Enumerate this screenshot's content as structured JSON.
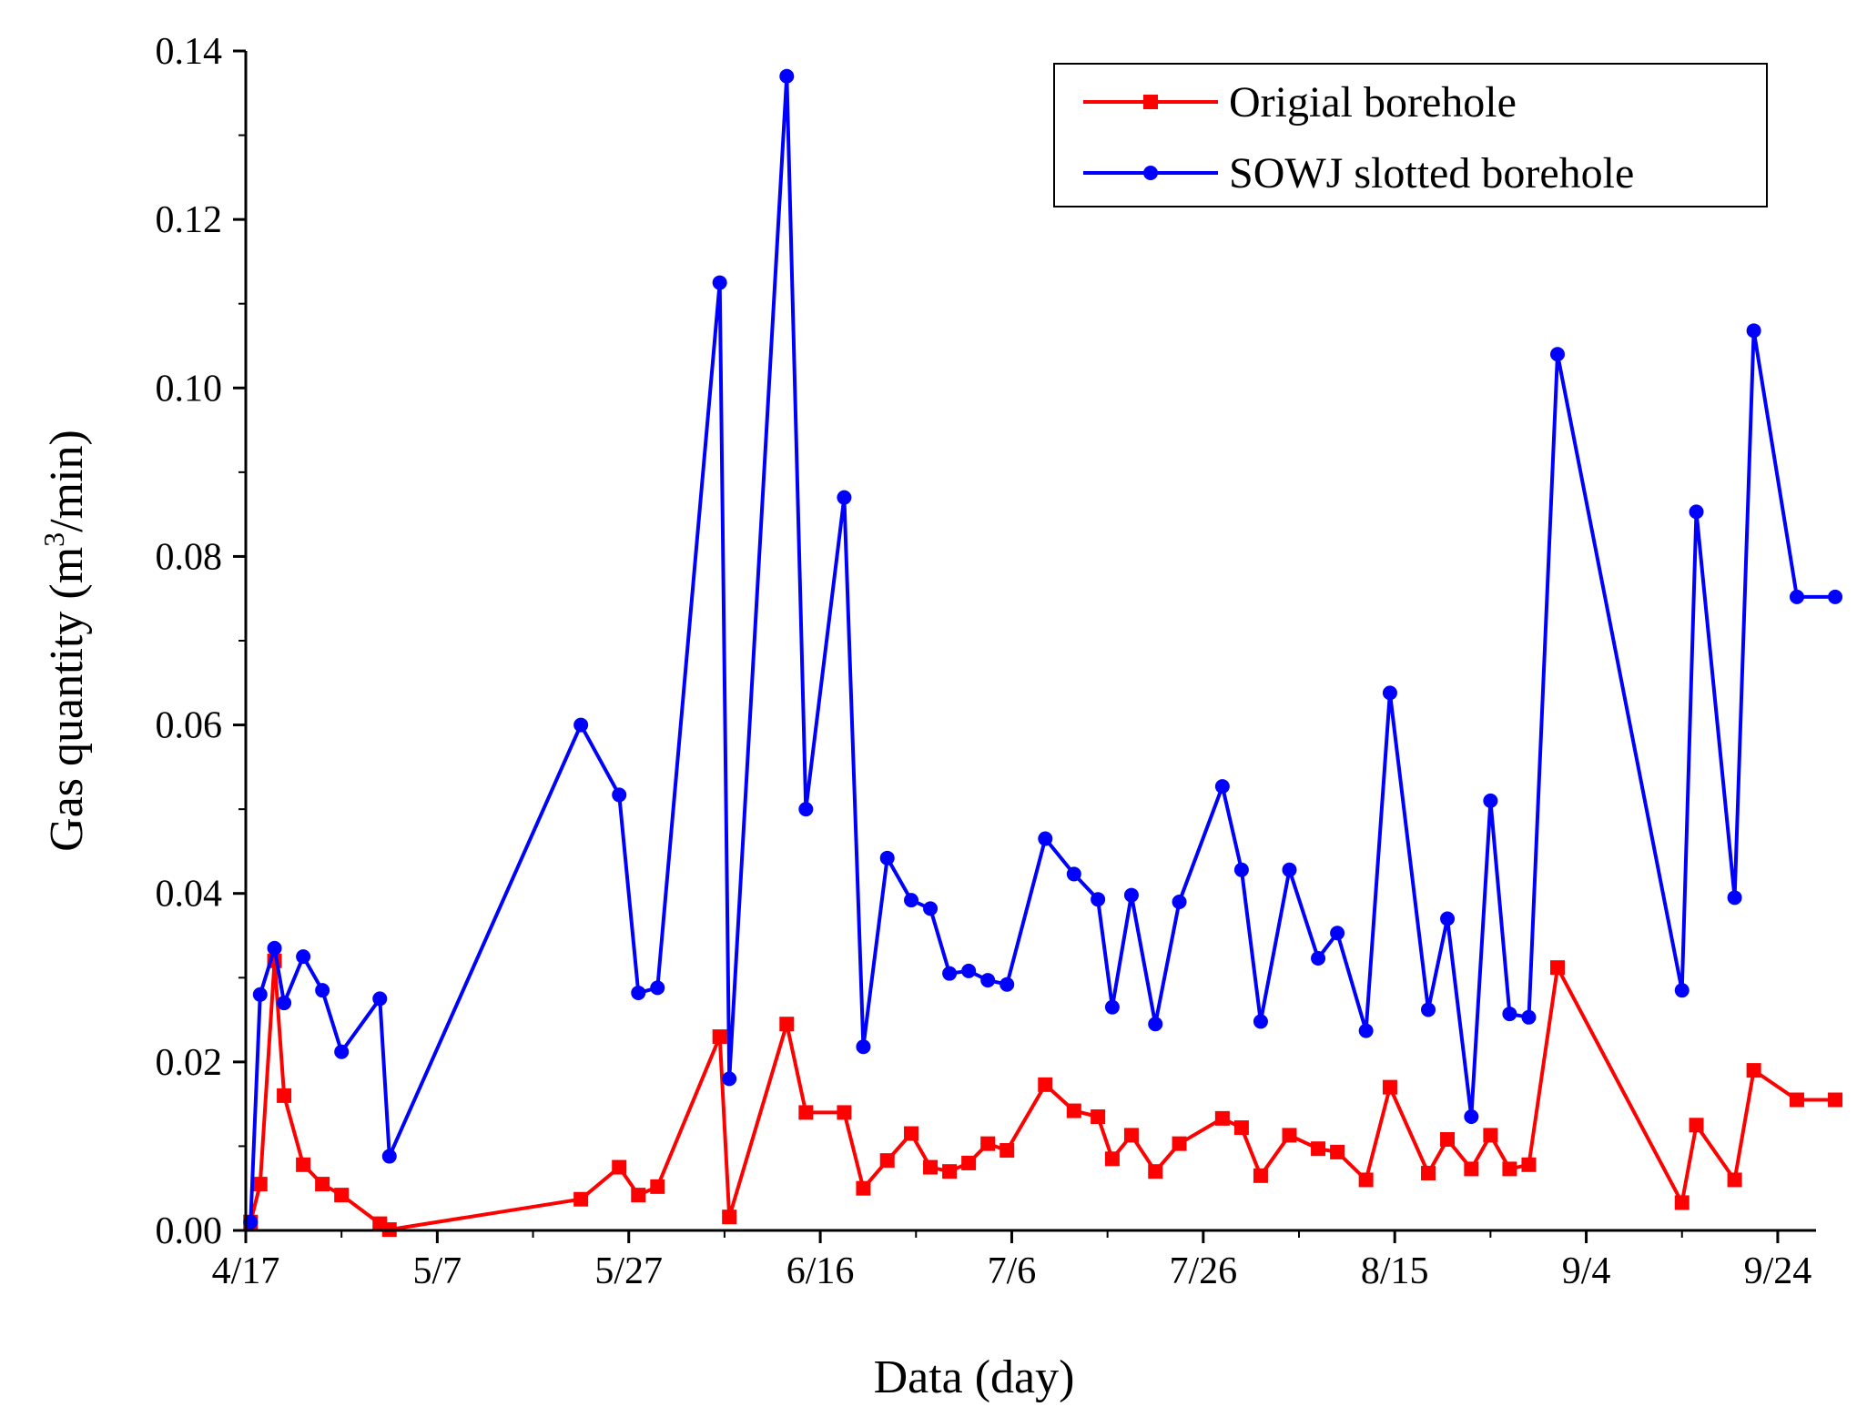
{
  "chart_data": {
    "type": "line",
    "title": "",
    "xlabel": "Data (day)",
    "ylabel_main": "Gas quantity (m",
    "ylabel_sup": "3",
    "ylabel_tail": "/min)",
    "ylabel": "Gas quantity (m3/min)",
    "x_unit": "days since 4/17",
    "xlim": [
      0,
      164
    ],
    "ylim": [
      0,
      0.14
    ],
    "x_ticks": [
      {
        "value": 0,
        "label": "4/17"
      },
      {
        "value": 20,
        "label": "5/7"
      },
      {
        "value": 40,
        "label": "5/27"
      },
      {
        "value": 60,
        "label": "6/16"
      },
      {
        "value": 80,
        "label": "7/6"
      },
      {
        "value": 100,
        "label": "7/26"
      },
      {
        "value": 120,
        "label": "8/15"
      },
      {
        "value": 140,
        "label": "9/4"
      },
      {
        "value": 160,
        "label": "9/24"
      }
    ],
    "y_ticks": [
      {
        "value": 0,
        "label": "0.00"
      },
      {
        "value": 0.02,
        "label": "0.02"
      },
      {
        "value": 0.04,
        "label": "0.04"
      },
      {
        "value": 0.06,
        "label": "0.06"
      },
      {
        "value": 0.08,
        "label": "0.08"
      },
      {
        "value": 0.1,
        "label": "0.10"
      },
      {
        "value": 0.12,
        "label": "0.12"
      },
      {
        "value": 0.14,
        "label": "0.14"
      }
    ],
    "legend_position": "top-right",
    "series": [
      {
        "name": "Origial borehole",
        "color": "#ff0000",
        "marker": "square",
        "x": [
          0.5,
          1.5,
          3,
          4,
          6,
          8,
          10,
          14,
          15,
          35,
          39,
          41,
          43,
          49.5,
          50.5,
          56.5,
          58.5,
          62.5,
          64.5,
          67,
          69.5,
          71.5,
          73.5,
          75.5,
          77.5,
          79.5,
          83.5,
          86.5,
          89,
          90.5,
          92.5,
          95,
          97.5,
          102,
          104,
          106,
          109,
          112,
          114,
          117,
          119.5,
          123.5,
          125.5,
          128,
          130,
          132,
          134,
          137,
          150,
          151.5,
          155.5,
          157.5,
          162,
          166
        ],
        "y": [
          0.001,
          0.0055,
          0.032,
          0.016,
          0.0078,
          0.0055,
          0.0042,
          0.0008,
          0.0001,
          0.0037,
          0.0075,
          0.0042,
          0.0052,
          0.023,
          0.0016,
          0.0245,
          0.014,
          0.014,
          0.005,
          0.0083,
          0.0115,
          0.0075,
          0.007,
          0.008,
          0.0103,
          0.0095,
          0.0173,
          0.0142,
          0.0135,
          0.0085,
          0.0113,
          0.007,
          0.0103,
          0.0133,
          0.0122,
          0.0065,
          0.0113,
          0.0097,
          0.0093,
          0.006,
          0.017,
          0.0068,
          0.0108,
          0.0073,
          0.0113,
          0.0073,
          0.0078,
          0.0312,
          0.0033,
          0.0125,
          0.006,
          0.019,
          0.0155,
          0.0155
        ]
      },
      {
        "name": "SOWJ slotted borehole",
        "color": "#0000ff",
        "marker": "circle",
        "x": [
          0.5,
          1.5,
          3,
          4,
          6,
          8,
          10,
          14,
          15,
          35,
          39,
          41,
          43,
          49.5,
          50.5,
          56.5,
          58.5,
          62.5,
          64.5,
          67,
          69.5,
          71.5,
          73.5,
          75.5,
          77.5,
          79.5,
          83.5,
          86.5,
          89,
          90.5,
          92.5,
          95,
          97.5,
          102,
          104,
          106,
          109,
          112,
          114,
          117,
          119.5,
          123.5,
          125.5,
          128,
          130,
          132,
          134,
          137,
          150,
          151.5,
          155.5,
          157.5,
          162,
          166
        ],
        "y": [
          0.001,
          0.028,
          0.0335,
          0.027,
          0.0325,
          0.0285,
          0.0212,
          0.0275,
          0.0088,
          0.06,
          0.0517,
          0.0282,
          0.0288,
          0.1125,
          0.018,
          0.137,
          0.05,
          0.087,
          0.0218,
          0.0442,
          0.0392,
          0.0382,
          0.0305,
          0.0308,
          0.0297,
          0.0292,
          0.0465,
          0.0423,
          0.0393,
          0.0265,
          0.0398,
          0.0245,
          0.039,
          0.0527,
          0.0428,
          0.0248,
          0.0428,
          0.0323,
          0.0353,
          0.0237,
          0.0638,
          0.0262,
          0.037,
          0.0135,
          0.051,
          0.0257,
          0.0253,
          0.104,
          0.0285,
          0.0853,
          0.0395,
          0.1068,
          0.0752,
          0.0752
        ]
      }
    ]
  }
}
